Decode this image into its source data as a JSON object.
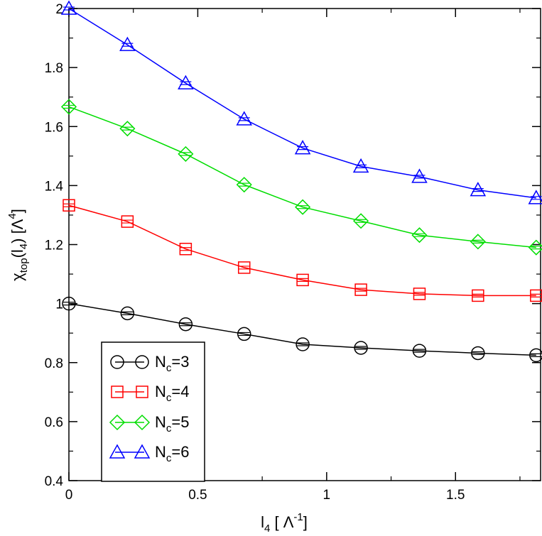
{
  "chart_data": {
    "type": "line",
    "x": [
      0,
      0.227,
      0.453,
      0.68,
      0.907,
      1.133,
      1.36,
      1.587,
      1.813
    ],
    "series": [
      {
        "name": "N_c=3",
        "base": "N",
        "sub": "c",
        "eq": "=3",
        "color": "#000000",
        "marker": "circle",
        "values": [
          1.0,
          0.967,
          0.93,
          0.897,
          0.862,
          0.85,
          0.84,
          0.832,
          0.825
        ]
      },
      {
        "name": "N_c=4",
        "base": "N",
        "sub": "c",
        "eq": "=4",
        "color": "#ff0000",
        "marker": "square",
        "values": [
          1.333,
          1.278,
          1.185,
          1.122,
          1.08,
          1.047,
          1.033,
          1.027,
          1.027
        ]
      },
      {
        "name": "N_c=5",
        "base": "N",
        "sub": "c",
        "eq": "=5",
        "color": "#00dd00",
        "marker": "diamond",
        "values": [
          1.667,
          1.593,
          1.507,
          1.403,
          1.327,
          1.28,
          1.232,
          1.21,
          1.19
        ]
      },
      {
        "name": "N_c=6",
        "base": "N",
        "sub": "c",
        "eq": "=6",
        "color": "#0000ff",
        "marker": "triangle",
        "values": [
          2.0,
          1.877,
          1.747,
          1.625,
          1.527,
          1.465,
          1.43,
          1.385,
          1.358
        ]
      }
    ],
    "xlim": [
      0,
      1.83
    ],
    "ylim": [
      0.4,
      2.0
    ],
    "xticks": [
      0,
      0.5,
      1,
      1.5
    ],
    "xtick_labels": [
      "0",
      "0.5",
      "1",
      "1.5"
    ],
    "yticks": [
      0.4,
      0.6,
      0.8,
      1.0,
      1.2,
      1.4,
      1.6,
      1.8,
      2.0
    ],
    "ytick_labels": [
      "0.4",
      "0.6",
      "0.8",
      "1",
      "1.2",
      "1.4",
      "1.6",
      "1.8",
      "2"
    ],
    "xlabel": {
      "base": "l",
      "sub": "4",
      "unit_open": " [ Λ",
      "unit_sup": "-1",
      "unit_close": "]"
    },
    "ylabel": {
      "chi": "χ",
      "sub": "top",
      "arg_open": "(l",
      "arg_sub": "4",
      "arg_close": ") [Λ",
      "sup": "4",
      "close": "]"
    },
    "legend_position": "bottom-left",
    "grid": false
  }
}
